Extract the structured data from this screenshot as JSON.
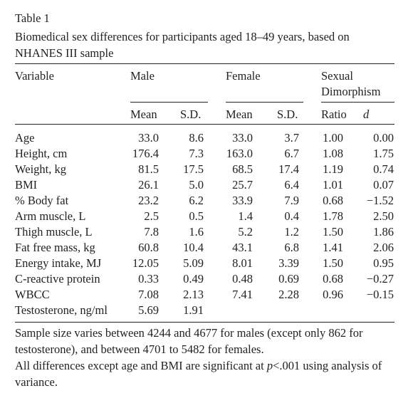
{
  "table": {
    "label": "Table 1",
    "caption": "Biomedical sex differences for participants aged 18–49 years, based on NHANES III sample",
    "headers": {
      "variable": "Variable",
      "male": "Male",
      "female": "Female",
      "dimorphism_line1": "Sexual",
      "dimorphism_line2": "Dimorphism",
      "mean": "Mean",
      "sd": "S.D.",
      "ratio": "Ratio",
      "d": "d"
    },
    "rows": [
      {
        "variable": "Age",
        "male_mean": "33.0",
        "male_sd": "8.6",
        "female_mean": "33.0",
        "female_sd": "3.7",
        "ratio": "1.00",
        "d": "0.00"
      },
      {
        "variable": "Height, cm",
        "male_mean": "176.4",
        "male_sd": "7.3",
        "female_mean": "163.0",
        "female_sd": "6.7",
        "ratio": "1.08",
        "d": "1.75"
      },
      {
        "variable": "Weight, kg",
        "male_mean": "81.5",
        "male_sd": "17.5",
        "female_mean": "68.5",
        "female_sd": "17.4",
        "ratio": "1.19",
        "d": "0.74"
      },
      {
        "variable": "BMI",
        "male_mean": "26.1",
        "male_sd": "5.0",
        "female_mean": "25.7",
        "female_sd": "6.4",
        "ratio": "1.01",
        "d": "0.07"
      },
      {
        "variable": "% Body fat",
        "male_mean": "23.2",
        "male_sd": "6.2",
        "female_mean": "33.9",
        "female_sd": "7.9",
        "ratio": "0.68",
        "d": "−1.52"
      },
      {
        "variable": "Arm muscle, L",
        "male_mean": "2.5",
        "male_sd": "0.5",
        "female_mean": "1.4",
        "female_sd": "0.4",
        "ratio": "1.78",
        "d": "2.50"
      },
      {
        "variable": "Thigh muscle, L",
        "male_mean": "7.8",
        "male_sd": "1.6",
        "female_mean": "5.2",
        "female_sd": "1.2",
        "ratio": "1.50",
        "d": "1.86"
      },
      {
        "variable": "Fat free mass, kg",
        "male_mean": "60.8",
        "male_sd": "10.4",
        "female_mean": "43.1",
        "female_sd": "6.8",
        "ratio": "1.41",
        "d": "2.06"
      },
      {
        "variable": "Energy intake, MJ",
        "male_mean": "12.05",
        "male_sd": "5.09",
        "female_mean": "8.01",
        "female_sd": "3.39",
        "ratio": "1.50",
        "d": "0.95"
      },
      {
        "variable": "C-reactive protein",
        "male_mean": "0.33",
        "male_sd": "0.49",
        "female_mean": "0.48",
        "female_sd": "0.69",
        "ratio": "0.68",
        "d": "−0.27"
      },
      {
        "variable": "WBCC",
        "male_mean": "7.08",
        "male_sd": "2.13",
        "female_mean": "7.41",
        "female_sd": "2.28",
        "ratio": "0.96",
        "d": "−0.15"
      },
      {
        "variable": "Testosterone, ng/ml",
        "male_mean": "5.69",
        "male_sd": "1.91",
        "female_mean": "",
        "female_sd": "",
        "ratio": "",
        "d": ""
      }
    ],
    "footnote1": "Sample size varies between 4244 and 4677 for males (except only 862 for testosterone), and between 4701 to 5482 for females.",
    "footnote2_before": "All differences except age and BMI are significant at ",
    "footnote2_p": "p",
    "footnote2_after": "<.001 using analysis of variance."
  }
}
